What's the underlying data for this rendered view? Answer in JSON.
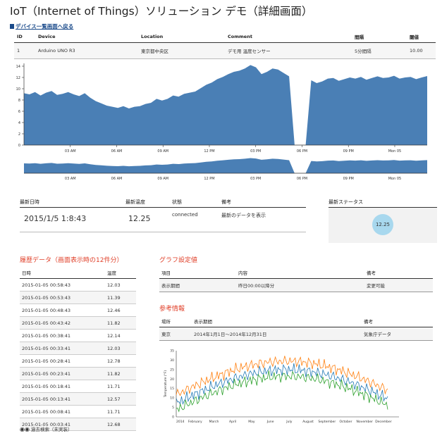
{
  "page": {
    "title": "IoT（Internet of Things）ソリューション デモ（詳細画面）",
    "back_link": "デバイス一覧画面へ戻る"
  },
  "device_table": {
    "headers": [
      "ID",
      "Device",
      "Location",
      "Comment",
      "間隔",
      "閾値"
    ],
    "row": [
      "1",
      "Arduino UNO R3",
      "東京都中央区",
      "デモ用 温度センサー",
      "5分間隔",
      "10.00"
    ]
  },
  "main_chart": {
    "y_ticks": [
      "0",
      "2",
      "4",
      "6",
      "8",
      "10",
      "12",
      "14"
    ],
    "x_ticks": [
      "03 AM",
      "06 AM",
      "09 AM",
      "12 PM",
      "03 PM",
      "06 PM",
      "09 PM",
      "Mon 05"
    ],
    "color": "#4a7fb5"
  },
  "chart_data": {
    "type": "area",
    "x_ticks": [
      "03 AM",
      "06 AM",
      "09 AM",
      "12 PM",
      "03 PM",
      "06 PM",
      "09 PM",
      "Mon 05"
    ],
    "ylim": [
      0,
      14.5
    ],
    "y_ticks": [
      0,
      2,
      4,
      6,
      8,
      10,
      12,
      14
    ],
    "values": [
      9.2,
      9.0,
      9.4,
      8.8,
      9.3,
      9.6,
      8.9,
      9.1,
      9.4,
      9.0,
      8.7,
      9.2,
      8.4,
      7.8,
      7.4,
      7.0,
      6.8,
      6.6,
      6.9,
      6.5,
      6.8,
      6.9,
      7.3,
      7.5,
      8.2,
      7.9,
      8.2,
      8.8,
      8.6,
      9.1,
      9.3,
      9.5,
      10.1,
      10.7,
      11.1,
      11.7,
      12.1,
      12.6,
      13.0,
      13.2,
      13.6,
      14.2,
      13.8,
      12.6,
      13.0,
      13.6,
      13.4,
      12.8,
      12.2,
      0.0,
      0.0,
      0.0,
      11.5,
      11.0,
      11.3,
      11.8,
      11.9,
      11.4,
      11.7,
      12.0,
      11.8,
      12.1,
      11.6,
      11.9,
      12.2,
      11.9,
      12.0,
      12.3,
      11.8,
      12.0,
      12.1,
      11.7,
      12.0,
      12.25
    ]
  },
  "status_table": {
    "headers": [
      "最新日時",
      "最新温度",
      "状態",
      "備考"
    ],
    "values": [
      "2015/1/5 1:8:43",
      "12.25",
      "connected",
      "最新のデータを表示"
    ]
  },
  "latest_status": {
    "title": "最新ステータス",
    "value": "12.25",
    "bubble_color": "#a8d8ee"
  },
  "history": {
    "title": "履歴データ（画面表示時の12件分）",
    "headers": [
      "日時",
      "温度"
    ],
    "rows": [
      [
        "2015-01-05 00:58:43",
        "12.03"
      ],
      [
        "2015-01-05 00:53:43",
        "11.39"
      ],
      [
        "2015-01-05 00:48:43",
        "12.46"
      ],
      [
        "2015-01-05 00:43:42",
        "11.82"
      ],
      [
        "2015-01-05 00:38:41",
        "12.14"
      ],
      [
        "2015-01-05 00:33:41",
        "12.03"
      ],
      [
        "2015-01-05 00:28:41",
        "12.78"
      ],
      [
        "2015-01-05 00:23:41",
        "11.82"
      ],
      [
        "2015-01-05 00:18:41",
        "11.71"
      ],
      [
        "2015-01-05 00:13:41",
        "12.57"
      ],
      [
        "2015-01-05 00:08:41",
        "11.71"
      ],
      [
        "2015-01-05 00:03:41",
        "12.68"
      ]
    ],
    "search_link": "過去検索（未実装）"
  },
  "graph_settings": {
    "title": "グラフ設定値",
    "headers": [
      "項目",
      "内容",
      "備考"
    ],
    "row": [
      "表示期間",
      "昨日00:00以降分",
      "変更可能"
    ]
  },
  "reference": {
    "title": "参考情報",
    "headers": [
      "場所",
      "表示期間",
      "備考"
    ],
    "row": [
      "東京",
      "2014年1月1日～2014年12月31日",
      "気象庁データ"
    ]
  },
  "ref_chart": {
    "y_label": "Temperature (°F)",
    "y_ticks": [
      "0",
      "5",
      "10",
      "15",
      "20",
      "25",
      "30",
      "35"
    ],
    "x_ticks": [
      "2014",
      "February",
      "March",
      "April",
      "May",
      "June",
      "July",
      "August",
      "September",
      "October",
      "November",
      "December"
    ],
    "colors": [
      "#ff7f0e",
      "#1f77b4",
      "#2ca02c"
    ]
  }
}
